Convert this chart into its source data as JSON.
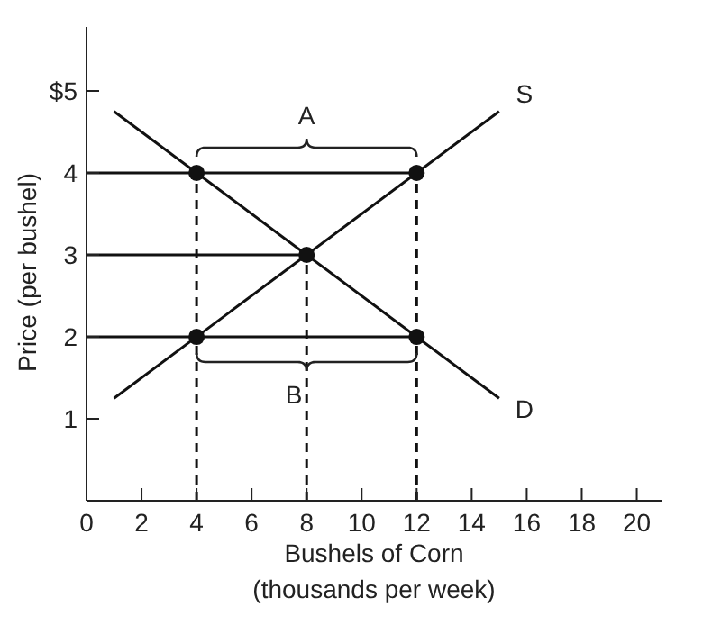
{
  "chart_data": {
    "type": "line",
    "xlabel": "Bushels of Corn\n(thousands per week)",
    "ylabel": "Price (per bushel)",
    "xlim": [
      0,
      20.9
    ],
    "ylim": [
      0,
      5.78
    ],
    "xticks": [
      {
        "value": 0,
        "label": "0"
      },
      2,
      4,
      6,
      8,
      10,
      12,
      14,
      16,
      18,
      20
    ],
    "yticks": [
      {
        "value": 0,
        "label": null
      },
      1,
      2,
      3,
      4,
      {
        "value": 5,
        "label": "$5"
      }
    ],
    "series": [
      {
        "name": "S",
        "color": "#111111",
        "x": [
          1,
          15
        ],
        "values": [
          1.25,
          4.75
        ]
      },
      {
        "name": "D",
        "color": "#111111",
        "x": [
          1,
          15
        ],
        "values": [
          4.75,
          1.25
        ]
      },
      {
        "color": "#111111",
        "x": [
          0,
          12
        ],
        "values": [
          4,
          4
        ]
      },
      {
        "color": "#111111",
        "x": [
          0,
          8
        ],
        "values": [
          3,
          3
        ]
      },
      {
        "color": "#111111",
        "x": [
          0,
          12
        ],
        "values": [
          2,
          2
        ]
      },
      {
        "color": "#111111",
        "line_style": "dashed",
        "x": [
          4,
          4
        ],
        "values": [
          0,
          4
        ]
      },
      {
        "color": "#111111",
        "line_style": "dashed",
        "x": [
          8,
          8
        ],
        "values": [
          0,
          3
        ]
      },
      {
        "color": "#111111",
        "line_style": "dashed",
        "x": [
          12,
          12
        ],
        "values": [
          0,
          4
        ]
      },
      {
        "type": "scatter",
        "color": "#111111",
        "x": [
          4,
          12,
          8,
          4,
          12
        ],
        "values": [
          4,
          4,
          3,
          2,
          2
        ]
      }
    ],
    "annotations": [
      "A",
      "B"
    ]
  }
}
